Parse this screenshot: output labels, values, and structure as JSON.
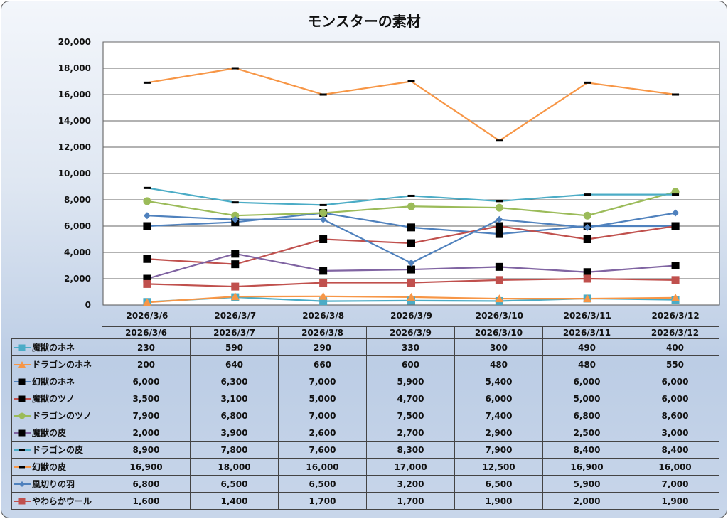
{
  "chart_data": {
    "type": "line",
    "title": "モンスターの素材",
    "xlabel": "",
    "ylabel": "",
    "ylim": [
      0,
      20000
    ],
    "yticks": [
      0,
      2000,
      4000,
      6000,
      8000,
      10000,
      12000,
      14000,
      16000,
      18000,
      20000
    ],
    "ytick_labels": [
      "0",
      "2,000",
      "4,000",
      "6,000",
      "8,000",
      "10,000",
      "12,000",
      "14,000",
      "16,000",
      "18,000",
      "20,000"
    ],
    "grid": true,
    "legend": "data-table-bottom",
    "categories": [
      "2026/3/6",
      "2026/3/7",
      "2026/3/8",
      "2026/3/9",
      "2026/3/10",
      "2026/3/11",
      "2026/3/12"
    ],
    "series": [
      {
        "name": "魔獣のホネ",
        "values": [
          230,
          590,
          290,
          330,
          300,
          490,
          400
        ],
        "labels": [
          "230",
          "590",
          "290",
          "330",
          "300",
          "490",
          "400"
        ],
        "color": "#4bacc6",
        "marker": "square",
        "marker_color": "#4bacc6"
      },
      {
        "name": "ドラゴンのホネ",
        "values": [
          200,
          640,
          660,
          600,
          480,
          480,
          550
        ],
        "labels": [
          "200",
          "640",
          "660",
          "600",
          "480",
          "480",
          "550"
        ],
        "color": "#f79646",
        "marker": "triangle",
        "marker_color": "#f79646"
      },
      {
        "name": "幻獣のホネ",
        "values": [
          6000,
          6300,
          7000,
          5900,
          5400,
          6000,
          6000
        ],
        "labels": [
          "6,000",
          "6,300",
          "7,000",
          "5,900",
          "5,400",
          "6,000",
          "6,000"
        ],
        "color": "#4f81bd",
        "marker": "square",
        "marker_color": "#000000"
      },
      {
        "name": "魔獣のツノ",
        "values": [
          3500,
          3100,
          5000,
          4700,
          6000,
          5000,
          6000
        ],
        "labels": [
          "3,500",
          "3,100",
          "5,000",
          "4,700",
          "6,000",
          "5,000",
          "6,000"
        ],
        "color": "#c0504d",
        "marker": "square",
        "marker_color": "#000000"
      },
      {
        "name": "ドラゴンのツノ",
        "values": [
          7900,
          6800,
          7000,
          7500,
          7400,
          6800,
          8600
        ],
        "labels": [
          "7,900",
          "6,800",
          "7,000",
          "7,500",
          "7,400",
          "6,800",
          "8,600"
        ],
        "color": "#9bbb59",
        "marker": "circle",
        "marker_color": "#9bbb59"
      },
      {
        "name": "魔獣の皮",
        "values": [
          2000,
          3900,
          2600,
          2700,
          2900,
          2500,
          3000
        ],
        "labels": [
          "2,000",
          "3,900",
          "2,600",
          "2,700",
          "2,900",
          "2,500",
          "3,000"
        ],
        "color": "#8064a2",
        "marker": "square",
        "marker_color": "#000000"
      },
      {
        "name": "ドラゴンの皮",
        "values": [
          8900,
          7800,
          7600,
          8300,
          7900,
          8400,
          8400
        ],
        "labels": [
          "8,900",
          "7,800",
          "7,600",
          "8,300",
          "7,900",
          "8,400",
          "8,400"
        ],
        "color": "#4bacc6",
        "marker": "dash",
        "marker_color": "#000000"
      },
      {
        "name": "幻獣の皮",
        "values": [
          16900,
          18000,
          16000,
          17000,
          12500,
          16900,
          16000
        ],
        "labels": [
          "16,900",
          "18,000",
          "16,000",
          "17,000",
          "12,500",
          "16,900",
          "16,000"
        ],
        "color": "#f79646",
        "marker": "dash",
        "marker_color": "#000000"
      },
      {
        "name": "風切りの羽",
        "values": [
          6800,
          6500,
          6500,
          3200,
          6500,
          5900,
          7000
        ],
        "labels": [
          "6,800",
          "6,500",
          "6,500",
          "3,200",
          "6,500",
          "5,900",
          "7,000"
        ],
        "color": "#4f81bd",
        "marker": "diamond",
        "marker_color": "#4f81bd"
      },
      {
        "name": "やわらかウール",
        "values": [
          1600,
          1400,
          1700,
          1700,
          1900,
          2000,
          1900
        ],
        "labels": [
          "1,600",
          "1,400",
          "1,700",
          "1,700",
          "1,900",
          "2,000",
          "1,900"
        ],
        "color": "#c0504d",
        "marker": "square",
        "marker_color": "#c0504d"
      }
    ]
  }
}
